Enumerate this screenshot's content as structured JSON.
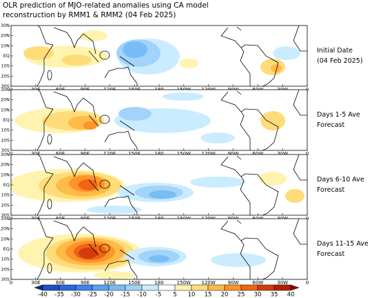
{
  "title": [
    "OLR prediction of MJO-related anomalies using CA model",
    "reconstruction by RMM1 & RMM2 (04 Feb 2025)"
  ],
  "panels": [
    {
      "label": [
        "Initial Date",
        "(04 Feb 2025)"
      ]
    },
    {
      "label": [
        "Days 1-5 Ave",
        "Forecast"
      ]
    },
    {
      "label": [
        "Days 6-10 Ave",
        "Forecast"
      ]
    },
    {
      "label": [
        "Days 11-15 Ave",
        "Forecast"
      ]
    }
  ],
  "lat_labels": [
    "30N",
    "20N",
    "10N",
    "EQ",
    "10S",
    "20S",
    "30S"
  ],
  "lon_labels": [
    "0",
    "30E",
    "60E",
    "90E",
    "120E",
    "150E",
    "180",
    "150W",
    "120W",
    "90W",
    "60W",
    "30W",
    "0"
  ],
  "colorbar": {
    "labels": [
      "-40",
      "-35",
      "-30",
      "-25",
      "-20",
      "-15",
      "-10",
      "-5",
      "5",
      "10",
      "15",
      "20",
      "25",
      "30",
      "35",
      "40"
    ],
    "colors": [
      "#0a2d8c",
      "#1e4fc4",
      "#2a66dc",
      "#3c82f0",
      "#5a9ff5",
      "#78bcf5",
      "#a2d3fa",
      "#cbecff",
      "#ffffff",
      "#fff3b0",
      "#ffdc7a",
      "#ffbb48",
      "#ff9428",
      "#f06414",
      "#d43a0c",
      "#b41e00",
      "#8c0000"
    ]
  }
}
